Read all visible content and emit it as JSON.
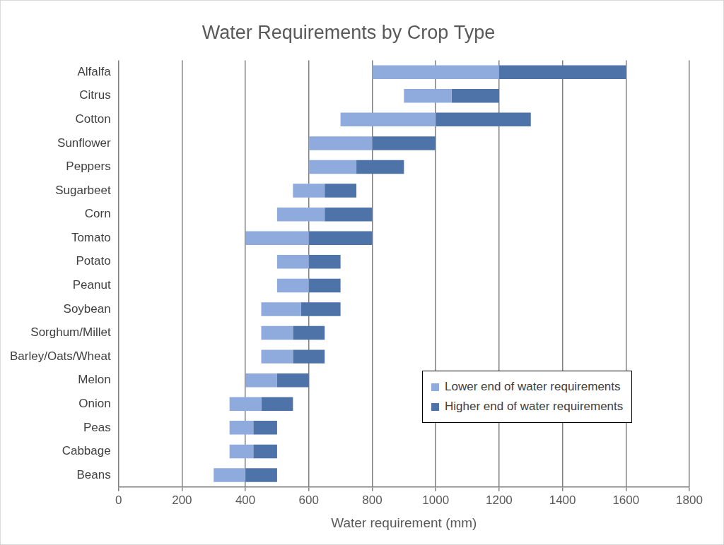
{
  "chart_data": {
    "type": "bar",
    "orientation": "horizontal",
    "title": "Water Requirements by Crop Type",
    "x_label": "Water requirement (mm)",
    "categories": [
      "Alfalfa",
      "Citrus",
      "Cotton",
      "Sunflower",
      "Peppers",
      "Sugarbeet",
      "Corn",
      "Tomato",
      "Potato",
      "Peanut",
      "Soybean",
      "Sorghum/Millet",
      "Barley/Oats/Wheat",
      "Melon",
      "Onion",
      "Peas",
      "Cabbage",
      "Beans"
    ],
    "series": [
      {
        "name": "Lower end of water requirements",
        "color": "#8faadc",
        "values": [
          [
            800,
            1200
          ],
          [
            900,
            1050
          ],
          [
            700,
            1000
          ],
          [
            600,
            800
          ],
          [
            600,
            750
          ],
          [
            550,
            650
          ],
          [
            500,
            650
          ],
          [
            400,
            600
          ],
          [
            500,
            600
          ],
          [
            500,
            600
          ],
          [
            450,
            575
          ],
          [
            450,
            550
          ],
          [
            450,
            550
          ],
          [
            400,
            500
          ],
          [
            350,
            450
          ],
          [
            350,
            425
          ],
          [
            350,
            425
          ],
          [
            300,
            400
          ]
        ]
      },
      {
        "name": "Higher end of water requirements",
        "color": "#4e73a8",
        "values": [
          [
            1200,
            1600
          ],
          [
            1050,
            1200
          ],
          [
            1000,
            1300
          ],
          [
            800,
            1000
          ],
          [
            750,
            900
          ],
          [
            650,
            750
          ],
          [
            650,
            800
          ],
          [
            600,
            800
          ],
          [
            600,
            700
          ],
          [
            600,
            700
          ],
          [
            575,
            700
          ],
          [
            550,
            650
          ],
          [
            550,
            650
          ],
          [
            500,
            600
          ],
          [
            450,
            550
          ],
          [
            425,
            500
          ],
          [
            425,
            500
          ],
          [
            400,
            500
          ]
        ]
      }
    ],
    "xlim": [
      0,
      1800
    ],
    "xticks": [
      0,
      200,
      400,
      600,
      800,
      1000,
      1200,
      1400,
      1600,
      1800
    ],
    "grid": true,
    "legend": "lower right"
  }
}
